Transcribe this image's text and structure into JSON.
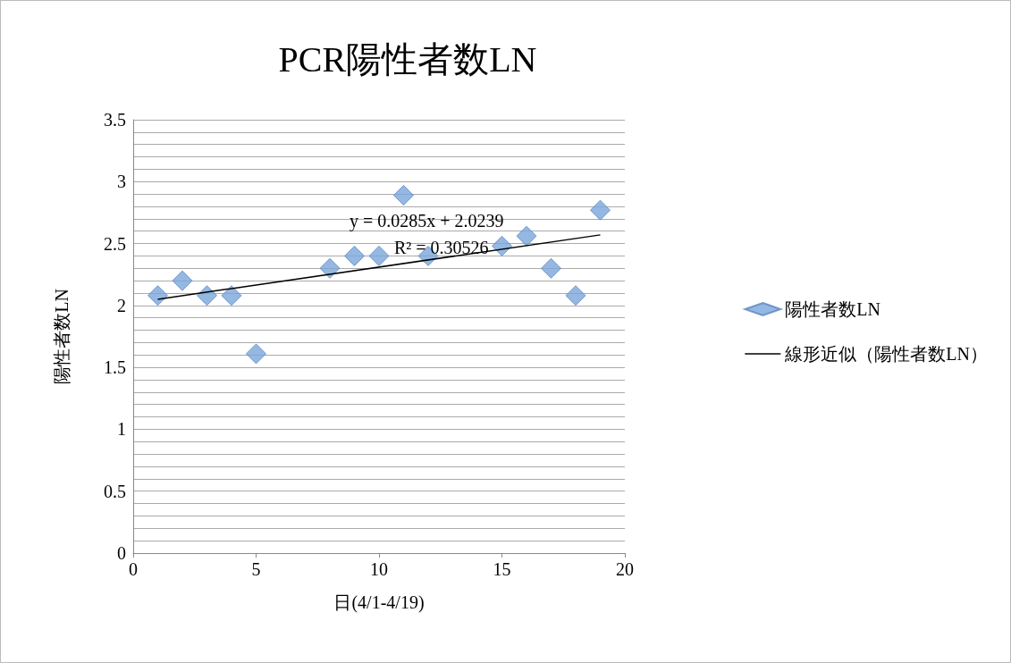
{
  "chart_data": {
    "type": "scatter",
    "title": "PCR陽性者数LN",
    "xlabel": "日(4/1-4/19)",
    "ylabel": "陽性者数LN",
    "x": [
      1,
      2,
      3,
      4,
      5,
      8,
      9,
      10,
      11,
      12,
      15,
      16,
      17,
      18,
      19
    ],
    "series": [
      {
        "name": "陽性者数LN",
        "color": "#7ba6dc",
        "marker": "diamond",
        "values": [
          2.08,
          2.2,
          2.08,
          2.08,
          1.61,
          2.3,
          2.4,
          2.4,
          2.89,
          2.4,
          2.48,
          2.56,
          2.3,
          2.08,
          2.77
        ]
      },
      {
        "name": "線形近似（陽性者数LN）",
        "type": "line",
        "color": "#000000",
        "marker": "none",
        "line_style": "solid",
        "x": [
          1,
          19
        ],
        "values": [
          2.05,
          2.57
        ]
      }
    ],
    "annotations": [
      "y = 0.0285x + 2.0239",
      "R² = 0.30526"
    ],
    "xlim": [
      0,
      20
    ],
    "xticks": [
      0,
      5,
      10,
      15,
      20
    ],
    "ylim": [
      0,
      3.5
    ],
    "yticks": [
      0,
      {
        "value": 0.1,
        "label": null
      },
      {
        "value": 0.2,
        "label": null
      },
      {
        "value": 0.3,
        "label": null
      },
      {
        "value": 0.4,
        "label": null
      },
      0.5,
      {
        "value": 0.6,
        "label": null
      },
      {
        "value": 0.7,
        "label": null
      },
      {
        "value": 0.8,
        "label": null
      },
      {
        "value": 0.9,
        "label": null
      },
      1,
      {
        "value": 1.1,
        "label": null
      },
      {
        "value": 1.2,
        "label": null
      },
      {
        "value": 1.3,
        "label": null
      },
      {
        "value": 1.4,
        "label": null
      },
      1.5,
      {
        "value": 1.6,
        "label": null
      },
      {
        "value": 1.7,
        "label": null
      },
      {
        "value": 1.8,
        "label": null
      },
      {
        "value": 1.9,
        "label": null
      },
      2,
      {
        "value": 2.1,
        "label": null
      },
      {
        "value": 2.2,
        "label": null
      },
      {
        "value": 2.3,
        "label": null
      },
      {
        "value": 2.4,
        "label": null
      },
      2.5,
      {
        "value": 2.6,
        "label": null
      },
      {
        "value": 2.7,
        "label": null
      },
      {
        "value": 2.8,
        "label": null
      },
      {
        "value": 2.9,
        "label": null
      },
      3,
      {
        "value": 3.1,
        "label": null
      },
      {
        "value": 3.2,
        "label": null
      },
      {
        "value": 3.3,
        "label": null
      },
      {
        "value": 3.4,
        "label": null
      },
      3.5
    ],
    "grid": "y",
    "legend": "right"
  }
}
